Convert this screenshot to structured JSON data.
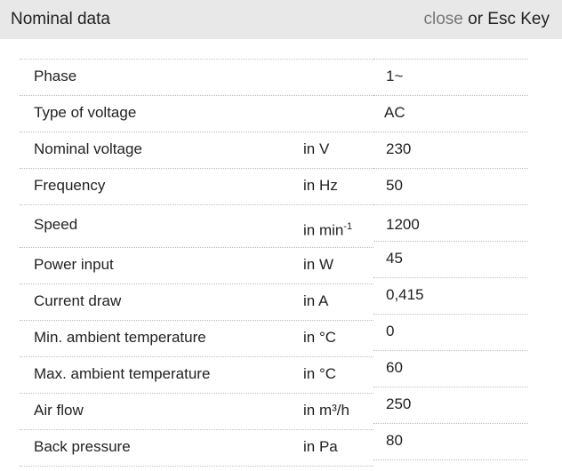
{
  "header": {
    "title": "Nominal data",
    "close_label": "close",
    "close_suffix": " or Esc Key"
  },
  "rows": [
    {
      "label": "Phase",
      "unit": "",
      "value": "1~"
    },
    {
      "label": "Type of voltage",
      "unit": "",
      "value": "AC"
    },
    {
      "label": "Nominal voltage",
      "unit": "in V",
      "value": "230"
    },
    {
      "label": "Frequency",
      "unit": "in Hz",
      "value": "50"
    },
    {
      "label": "Speed",
      "unit": "in min",
      "unit_sup": "-1",
      "value": "1200"
    },
    {
      "label": "Power input",
      "unit": "in W",
      "value": "45"
    },
    {
      "label": "Current draw",
      "unit": "in A",
      "value": "0,415"
    },
    {
      "label": "Min. ambient temperature",
      "unit": "in °C",
      "value": "0"
    },
    {
      "label": "Max. ambient temperature",
      "unit": "in °C",
      "value": "60"
    },
    {
      "label": "Air flow",
      "unit": "in m³/h",
      "value": "250"
    },
    {
      "label": "Back pressure",
      "unit": "in Pa",
      "value": "80"
    }
  ]
}
